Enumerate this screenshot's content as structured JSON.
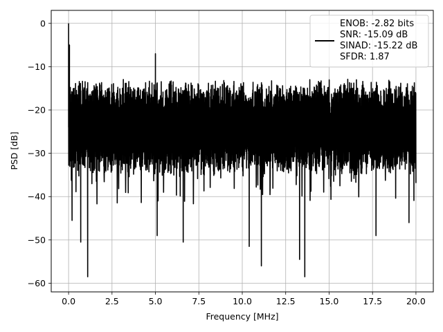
{
  "chart_data": {
    "type": "line",
    "title": "",
    "xlabel": "Frequency [MHz]",
    "ylabel": "PSD [dB]",
    "xlim": [
      -1.0,
      21.0
    ],
    "ylim": [
      -62.0,
      3.0
    ],
    "xticks": [
      0.0,
      2.5,
      5.0,
      7.5,
      10.0,
      12.5,
      15.0,
      17.5,
      20.0
    ],
    "xtick_labels": [
      "0.0",
      "2.5",
      "5.0",
      "7.5",
      "10.0",
      "12.5",
      "15.0",
      "17.5",
      "20.0"
    ],
    "yticks": [
      0,
      -10,
      -20,
      -30,
      -40,
      -50,
      -60
    ],
    "ytick_labels": [
      "0",
      "−10",
      "−20",
      "−30",
      "−40",
      "−50",
      "−60"
    ],
    "grid": true,
    "legend_position": "top-right",
    "line_color": "#000000",
    "series": [
      {
        "legend_lines": [
          "ENOB: -2.82 bits",
          "SNR: -15.09 dB",
          "SINAD: -15.22 dB",
          "SFDR: 1.87"
        ],
        "x_range_mhz": [
          0.0,
          20.0
        ],
        "noise_floor_db": -24,
        "noise_upper_db": -15,
        "noise_lower_db": -34,
        "peaks": [
          {
            "x": 0.0,
            "y": 0.0
          },
          {
            "x": 0.05,
            "y": -5.0
          },
          {
            "x": 5.0,
            "y": -7.0
          }
        ],
        "dips": [
          {
            "x": 0.2,
            "y": -45.5
          },
          {
            "x": 0.7,
            "y": -50.5
          },
          {
            "x": 1.1,
            "y": -58.5
          },
          {
            "x": 5.1,
            "y": -49.0
          },
          {
            "x": 6.6,
            "y": -50.5
          },
          {
            "x": 10.4,
            "y": -51.5
          },
          {
            "x": 11.1,
            "y": -56.0
          },
          {
            "x": 13.3,
            "y": -54.5
          },
          {
            "x": 13.6,
            "y": -58.5
          },
          {
            "x": 17.7,
            "y": -49.0
          },
          {
            "x": 19.6,
            "y": -46.0
          }
        ]
      }
    ]
  }
}
